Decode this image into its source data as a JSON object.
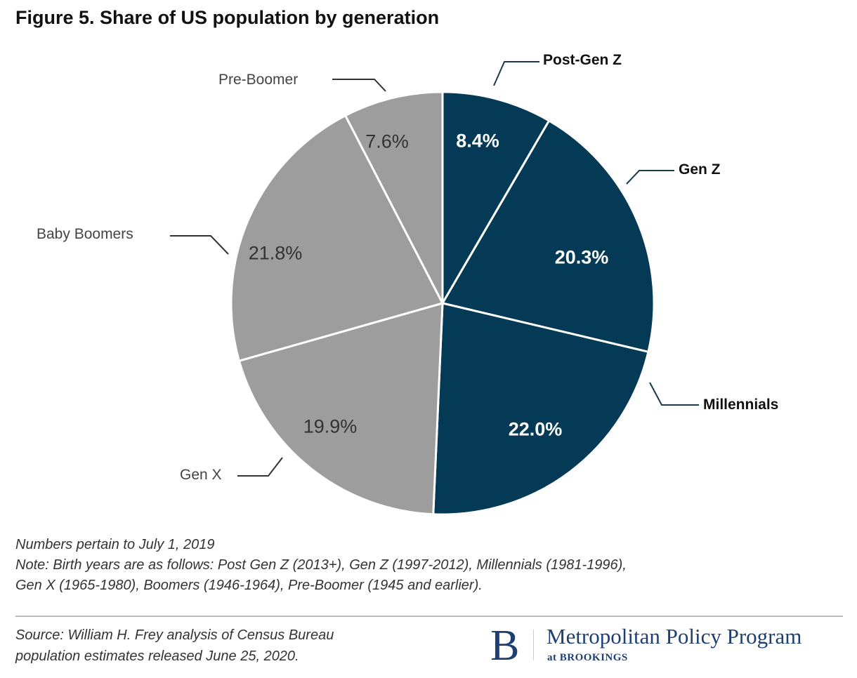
{
  "chart_data": {
    "type": "pie",
    "title": "Figure 5. Share of US population by generation",
    "slices": [
      {
        "label": "Post-Gen Z",
        "value": 8.4,
        "display": "8.4%",
        "group": "dark"
      },
      {
        "label": "Gen Z",
        "value": 20.3,
        "display": "20.3%",
        "group": "dark"
      },
      {
        "label": "Millennials",
        "value": 22.0,
        "display": "22.0%",
        "group": "dark"
      },
      {
        "label": "Gen X",
        "value": 19.9,
        "display": "19.9%",
        "group": "light"
      },
      {
        "label": "Baby Boomers",
        "value": 21.8,
        "display": "21.8%",
        "group": "light"
      },
      {
        "label": "Pre-Boomer",
        "value": 7.6,
        "display": "7.6%",
        "group": "light"
      }
    ],
    "colors": {
      "dark": "#053a56",
      "light": "#9d9d9d",
      "border": "#ffffff",
      "leader": "#1a3a4a"
    },
    "start_angle_deg": 0,
    "direction": "clockwise"
  },
  "notes": {
    "line1": "Numbers pertain to July 1, 2019",
    "line2": "Note: Birth years are as follows: Post Gen Z (2013+), Gen Z (1997-2012), Millennials (1981-1996),",
    "line3": "Gen X (1965-1980), Boomers (1946-1964), Pre-Boomer (1945 and earlier)."
  },
  "source": {
    "line1": "Source: William H. Frey analysis of Census Bureau",
    "line2": "population estimates released June 25, 2020."
  },
  "logo": {
    "mark": "B",
    "name": "Metropolitan Policy Program",
    "sub": "at BROOKINGS"
  }
}
